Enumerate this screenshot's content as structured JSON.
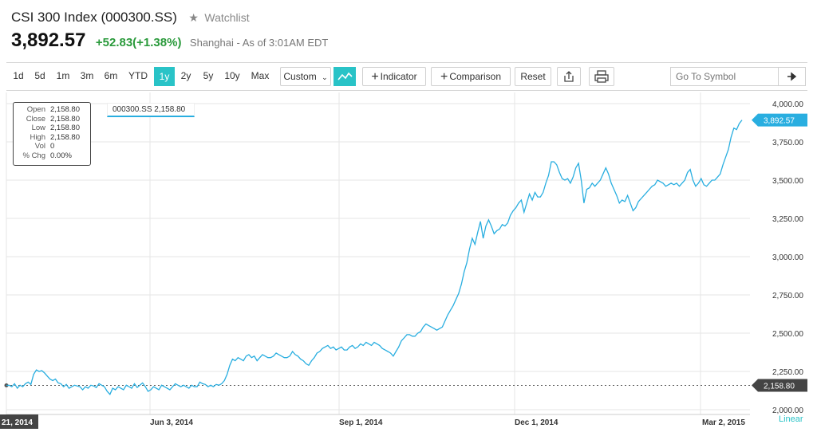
{
  "header": {
    "title": "CSI 300 Index (000300.SS)",
    "watchlist_label": "Watchlist",
    "price": "3,892.57",
    "change": "+52.83",
    "change_pct": "(+1.38%)",
    "market_status": "Shanghai - As of 3:01AM EDT"
  },
  "toolbar": {
    "ranges": [
      "1d",
      "5d",
      "1m",
      "3m",
      "6m",
      "YTD",
      "1y",
      "2y",
      "5y",
      "10y",
      "Max"
    ],
    "active_range": "1y",
    "custom_label": "Custom",
    "indicator_label": "Indicator",
    "comparison_label": "Comparison",
    "reset_label": "Reset",
    "symbol_placeholder": "Go To Symbol"
  },
  "tooltip": {
    "rows": [
      {
        "key": "Open",
        "value": "2,158.80"
      },
      {
        "key": "Close",
        "value": "2,158.80"
      },
      {
        "key": "Low",
        "value": "2,158.80"
      },
      {
        "key": "High",
        "value": "2,158.80"
      },
      {
        "key": "Vol",
        "value": "0"
      },
      {
        "key": "% Chg",
        "value": "0.00%"
      }
    ]
  },
  "legend_label": "000300.SS 2,158.80",
  "scale_label": "Linear",
  "colors": {
    "accent": "#29c3c7",
    "line": "#29aee0",
    "positive": "#2a9a3b",
    "badge_dark": "#444444"
  },
  "chart_data": {
    "type": "line",
    "series": [
      {
        "name": "000300.SS",
        "values": [
          2158.8,
          2160,
          2150,
          2170,
          2140,
          2160,
          2150,
          2170,
          2180,
          2165,
          2230,
          2260,
          2250,
          2255,
          2240,
          2220,
          2200,
          2190,
          2200,
          2175,
          2170,
          2150,
          2165,
          2140,
          2150,
          2160,
          2155,
          2150,
          2130,
          2150,
          2140,
          2160,
          2155,
          2145,
          2170,
          2160,
          2150,
          2120,
          2100,
          2140,
          2130,
          2150,
          2140,
          2130,
          2160,
          2150,
          2140,
          2170,
          2145,
          2160,
          2175,
          2150,
          2120,
          2130,
          2150,
          2140,
          2130,
          2160,
          2150,
          2140,
          2130,
          2150,
          2170,
          2160,
          2150,
          2160,
          2150,
          2140,
          2160,
          2150,
          2150,
          2180,
          2170,
          2165,
          2150,
          2160,
          2150,
          2165,
          2160,
          2170,
          2190,
          2230,
          2290,
          2330,
          2320,
          2340,
          2330,
          2320,
          2350,
          2360,
          2340,
          2350,
          2320,
          2340,
          2360,
          2350,
          2340,
          2340,
          2350,
          2370,
          2360,
          2350,
          2340,
          2340,
          2350,
          2380,
          2360,
          2350,
          2330,
          2320,
          2300,
          2290,
          2320,
          2340,
          2370,
          2380,
          2400,
          2410,
          2420,
          2400,
          2410,
          2390,
          2400,
          2410,
          2390,
          2390,
          2410,
          2420,
          2400,
          2410,
          2430,
          2420,
          2440,
          2430,
          2420,
          2440,
          2430,
          2420,
          2400,
          2390,
          2380,
          2370,
          2350,
          2380,
          2410,
          2450,
          2470,
          2490,
          2490,
          2480,
          2480,
          2500,
          2510,
          2540,
          2560,
          2550,
          2540,
          2530,
          2520,
          2530,
          2540,
          2580,
          2620,
          2650,
          2680,
          2720,
          2760,
          2820,
          2900,
          2960,
          3050,
          3120,
          3080,
          3160,
          3230,
          3120,
          3200,
          3240,
          3200,
          3150,
          3170,
          3180,
          3210,
          3200,
          3220,
          3270,
          3300,
          3320,
          3350,
          3370,
          3290,
          3350,
          3410,
          3370,
          3420,
          3390,
          3390,
          3420,
          3480,
          3530,
          3620,
          3620,
          3600,
          3550,
          3510,
          3500,
          3510,
          3480,
          3520,
          3580,
          3610,
          3500,
          3350,
          3440,
          3450,
          3480,
          3460,
          3480,
          3500,
          3540,
          3580,
          3540,
          3480,
          3440,
          3400,
          3350,
          3370,
          3360,
          3400,
          3350,
          3300,
          3320,
          3360,
          3380,
          3400,
          3420,
          3440,
          3460,
          3470,
          3500,
          3490,
          3480,
          3460,
          3470,
          3480,
          3470,
          3480,
          3460,
          3480,
          3500,
          3550,
          3570,
          3500,
          3460,
          3480,
          3510,
          3470,
          3460,
          3480,
          3500,
          3500,
          3520,
          3540,
          3600,
          3650,
          3700,
          3780,
          3840,
          3830,
          3870,
          3892.57
        ]
      }
    ],
    "x_ticks": [
      "21, 2014",
      "Jun 3, 2014",
      "Sep 1, 2014",
      "Dec 1, 2014",
      "Mar 2, 2015"
    ],
    "y_ticks": [
      "2,000.00",
      "2,250.00",
      "2,500.00",
      "2,750.00",
      "3,000.00",
      "3,250.00",
      "3,500.00",
      "3,750.00",
      "4,000.00"
    ],
    "ylim": [
      2000,
      4000
    ],
    "last_value_label": "3,892.57",
    "reference_value": 2158.8,
    "reference_label": "2,158.80",
    "grid": true,
    "legend": "top-left",
    "scale": "linear"
  }
}
